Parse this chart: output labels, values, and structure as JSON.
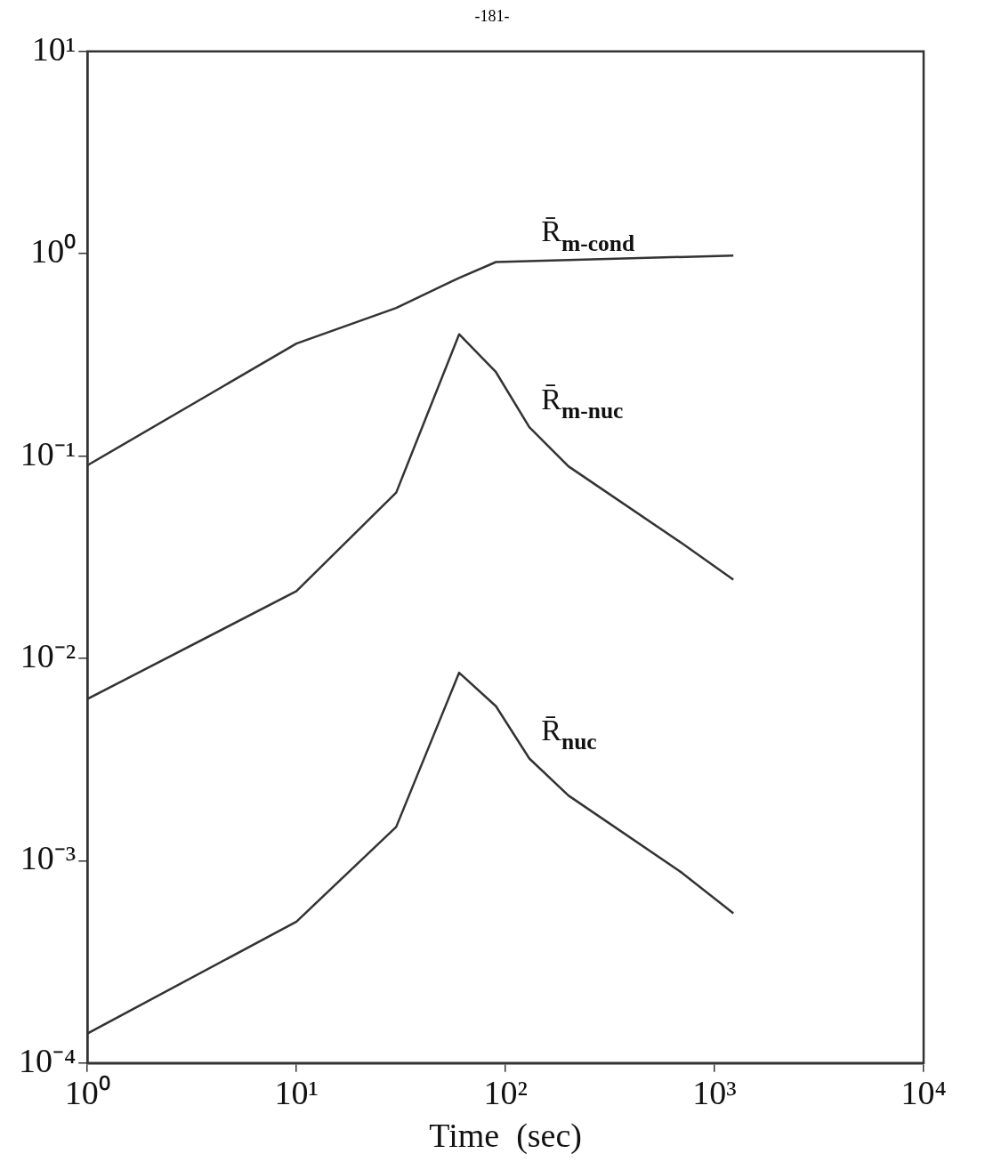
{
  "chart_data": {
    "type": "line",
    "annotations": [
      "-181-"
    ],
    "xlabel": "Time  (sec)",
    "log": "xy",
    "legend": false,
    "grid": false,
    "marker": "none",
    "line_style": "solid",
    "xlim": [
      1,
      10000
    ],
    "xticks": [
      {
        "value": 1,
        "label": "10⁰"
      },
      {
        "value": 10,
        "label": "10¹"
      },
      {
        "value": 100,
        "label": "10²"
      },
      {
        "value": 1000,
        "label": "10³"
      },
      {
        "value": 10000,
        "label": "10⁴"
      }
    ],
    "ylim": [
      0.0001,
      10
    ],
    "yticks": [
      {
        "value": 0.0001,
        "label": "10⁻⁴"
      },
      {
        "value": 0.001,
        "label": "10⁻³"
      },
      {
        "value": 0.01,
        "label": "10⁻²"
      },
      {
        "value": 0.1,
        "label": "10⁻¹"
      },
      {
        "value": 1,
        "label": "10⁰"
      },
      {
        "value": 10,
        "label": "10¹"
      }
    ],
    "series": [
      {
        "name": "R̄$_{m-cond}$",
        "color": "#333333",
        "x": [
          1,
          10,
          30,
          60,
          90,
          1230
        ],
        "values": [
          0.09,
          0.36,
          0.54,
          0.76,
          0.91,
          0.98
        ]
      },
      {
        "name": "R̄$_{m-nuc}$",
        "color": "#333333",
        "x": [
          1,
          10,
          30,
          60,
          90,
          130,
          200,
          700,
          1230
        ],
        "values": [
          0.0063,
          0.0215,
          0.066,
          0.4,
          0.26,
          0.139,
          0.089,
          0.037,
          0.0245
        ]
      },
      {
        "name": "R̄$_{nuc}$",
        "color": "#333333",
        "x": [
          1,
          10,
          30,
          60,
          90,
          130,
          200,
          700,
          1230
        ],
        "values": [
          0.00014,
          0.0005,
          0.00147,
          0.0085,
          0.0058,
          0.0032,
          0.0021,
          0.00087,
          0.00055
        ]
      }
    ]
  }
}
